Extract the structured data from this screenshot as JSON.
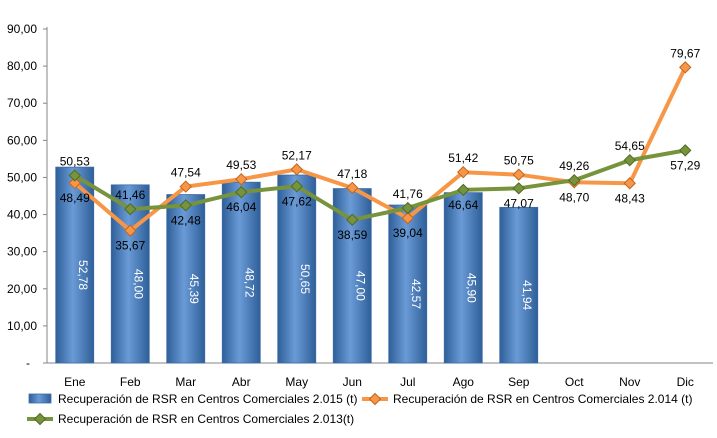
{
  "chart_data": {
    "type": "bar",
    "categories": [
      "Ene",
      "Feb",
      "Mar",
      "Abr",
      "May",
      "Jun",
      "Jul",
      "Ago",
      "Sep",
      "Oct",
      "Nov",
      "Dic"
    ],
    "ylim": [
      0,
      90
    ],
    "y_ticks": [
      "-",
      "10,00",
      "20,00",
      "30,00",
      "40,00",
      "50,00",
      "60,00",
      "70,00",
      "80,00",
      "90,00"
    ],
    "grid": false,
    "legend_position": "bottom",
    "series": [
      {
        "name": "Recuperación de RSR en Centros Comerciales 2.015 (t)",
        "kind": "bar",
        "color": "#4F81BD",
        "values": [
          52.78,
          48.0,
          45.39,
          48.72,
          50.65,
          47.0,
          42.57,
          45.9,
          41.94,
          null,
          null,
          null
        ],
        "labels": [
          "52,78",
          "48,00",
          "45,39",
          "48,72",
          "50,65",
          "47,00",
          "42,57",
          "45,90",
          "41,94",
          "",
          "",
          ""
        ]
      },
      {
        "name": "Recuperación de RSR en Centros Comerciales 2.014 (t)",
        "kind": "line",
        "color": "#F79646",
        "marker_color": "#F79646",
        "values": [
          48.49,
          35.67,
          47.54,
          49.53,
          52.17,
          47.18,
          39.04,
          51.42,
          50.75,
          48.7,
          48.43,
          79.67
        ],
        "labels": [
          "48,49",
          "35,67",
          "47,54",
          "49,53",
          "52,17",
          "47,18",
          "39,04",
          "51,42",
          "50,75",
          "48,70",
          "48,43",
          "79,67"
        ]
      },
      {
        "name": "Recuperación de RSR en Centros Comerciales 2.013(t)",
        "kind": "line",
        "color": "#77933C",
        "marker_color": "#77933C",
        "values": [
          50.53,
          41.46,
          42.48,
          46.04,
          47.62,
          38.59,
          41.76,
          46.64,
          47.07,
          49.26,
          54.65,
          57.29
        ],
        "labels": [
          "50,53",
          "41,46",
          "42,48",
          "46,04",
          "47,62",
          "38,59",
          "41,76",
          "46,64",
          "47,07",
          "49,26",
          "54,65",
          "57,29"
        ]
      }
    ]
  }
}
